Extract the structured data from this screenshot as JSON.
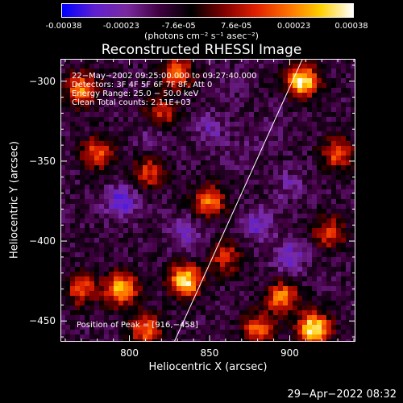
{
  "colorbar": {
    "tick_labels": [
      "-0.00038",
      "-0.00023",
      "-7.6e-05",
      "7.6e-05",
      "0.00023",
      "0.00038"
    ],
    "units": "(photons cm⁻² s⁻¹ asec⁻²)",
    "colors": [
      "#0000ff",
      "#6020d0",
      "#7a2aa0",
      "#400040",
      "#000000",
      "#800000",
      "#e02000",
      "#ff7000",
      "#ffd000",
      "#ffffff"
    ]
  },
  "chart_data": {
    "type": "heatmap",
    "title": "Reconstructed RHESSI Image",
    "xlabel": "Heliocentric X (arcsec)",
    "ylabel": "Heliocentric Y (arcsec)",
    "xlim": [
      757,
      941
    ],
    "ylim": [
      -463,
      -286
    ],
    "x_ticks": [
      800,
      850,
      900
    ],
    "x_tick_labels": [
      "800",
      "850",
      "900"
    ],
    "y_ticks": [
      -300,
      -350,
      -400,
      -450
    ],
    "y_tick_labels": [
      "−300",
      "−350",
      "−400",
      "−450"
    ],
    "zlim": [
      -0.00038,
      0.00038
    ],
    "info_lines": [
      "22−May−2002 09:25:00.000 to 09:27:40.000",
      "Detectors: 3F 4F 5F 6F 7F 8F, Att 0",
      "Energy Range: 25.0 − 50.0 keV",
      "Clean     Total counts: 2.11E+03"
    ],
    "peak_label": "Position of Peak = [916,−458]",
    "peak_position": [
      916,
      -458
    ],
    "limb_line": [
      [
        828,
        -463
      ],
      [
        908,
        -286
      ]
    ],
    "hot_spots": [
      {
        "x": 908,
        "y": -300,
        "value": 0.00036
      },
      {
        "x": 915,
        "y": -455,
        "value": 0.00038
      },
      {
        "x": 795,
        "y": -430,
        "value": 0.0003
      },
      {
        "x": 835,
        "y": -425,
        "value": 0.00035
      },
      {
        "x": 770,
        "y": -305,
        "value": 0.00022
      },
      {
        "x": 830,
        "y": -295,
        "value": 0.0002
      },
      {
        "x": 780,
        "y": -345,
        "value": 0.00018
      },
      {
        "x": 770,
        "y": -430,
        "value": 0.00016
      },
      {
        "x": 812,
        "y": -357,
        "value": 0.00014
      },
      {
        "x": 850,
        "y": -375,
        "value": 0.0002
      },
      {
        "x": 820,
        "y": -320,
        "value": 0.00012
      },
      {
        "x": 930,
        "y": -345,
        "value": 0.00017
      },
      {
        "x": 895,
        "y": -435,
        "value": 0.00022
      },
      {
        "x": 810,
        "y": -455,
        "value": 0.0002
      },
      {
        "x": 880,
        "y": -455,
        "value": 0.00018
      },
      {
        "x": 860,
        "y": -410,
        "value": 0.00012
      },
      {
        "x": 925,
        "y": -395,
        "value": 0.00014
      }
    ],
    "cold_spots": [
      {
        "x": 795,
        "y": -375,
        "value": -0.0003
      },
      {
        "x": 835,
        "y": -395,
        "value": -0.00025
      },
      {
        "x": 880,
        "y": -390,
        "value": -0.00026
      },
      {
        "x": 900,
        "y": -410,
        "value": -0.00028
      },
      {
        "x": 850,
        "y": -330,
        "value": -0.00022
      },
      {
        "x": 900,
        "y": -365,
        "value": -0.0002
      },
      {
        "x": 815,
        "y": -335,
        "value": -0.00018
      },
      {
        "x": 870,
        "y": -345,
        "value": -0.00016
      },
      {
        "x": 865,
        "y": -300,
        "value": -0.00014
      },
      {
        "x": 890,
        "y": -330,
        "value": -0.00015
      }
    ]
  },
  "timestamp": "29−Apr−2022 08:32"
}
